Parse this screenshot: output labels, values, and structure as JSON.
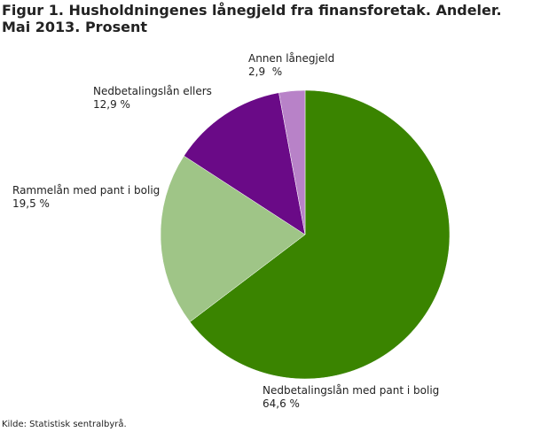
{
  "chart_data": {
    "type": "pie",
    "title": "Figur 1. Husholdningenes lånegjeld fra finansforetak. Andeler. Mai 2013. Prosent",
    "categories": [
      "Nedbetalingslån med pant i bolig",
      "Rammelån med pant i bolig",
      "Nedbetalingslån ellers",
      "Annen lånegjeld"
    ],
    "values": [
      64.6,
      19.5,
      12.9,
      2.9
    ],
    "value_labels": [
      "64,6 %",
      "19,5 %",
      "12,9 %",
      "2,9  %"
    ],
    "colors": [
      "#3a8400",
      "#9fc587",
      "#6a0a87",
      "#b882c8"
    ],
    "source": "Kilde: Statistisk sentralbyrå."
  }
}
